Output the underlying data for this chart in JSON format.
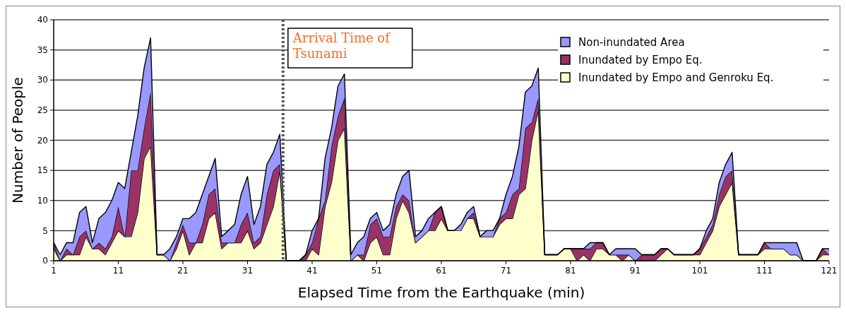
{
  "chart_data": {
    "type": "area",
    "stacked": true,
    "xlabel": "Elapsed Time from the Earthquake (min)",
    "ylabel": "Number of People",
    "x": [
      1,
      2,
      3,
      4,
      5,
      6,
      7,
      8,
      9,
      10,
      11,
      12,
      13,
      14,
      15,
      16,
      17,
      18,
      19,
      20,
      21,
      22,
      23,
      24,
      25,
      26,
      27,
      28,
      29,
      30,
      31,
      32,
      33,
      34,
      35,
      36,
      37,
      38,
      39,
      40,
      41,
      42,
      43,
      44,
      45,
      46,
      47,
      48,
      49,
      50,
      51,
      52,
      53,
      54,
      55,
      56,
      57,
      58,
      59,
      60,
      61,
      62,
      63,
      64,
      65,
      66,
      67,
      68,
      69,
      70,
      71,
      72,
      73,
      74,
      75,
      76,
      77,
      78,
      79,
      80,
      81,
      82,
      83,
      84,
      85,
      86,
      87,
      88,
      89,
      90,
      91,
      92,
      93,
      94,
      95,
      96,
      97,
      98,
      99,
      100,
      101,
      102,
      103,
      104,
      105,
      106,
      107,
      108,
      109,
      110,
      111,
      112,
      113,
      114,
      115,
      116,
      117,
      118,
      119,
      120,
      121
    ],
    "series": [
      {
        "name": "Inundated by Empo and Genroku Eq.",
        "color": "#ffffcc",
        "values": [
          2,
          0,
          1,
          1,
          1,
          4,
          2,
          2,
          1,
          3,
          5,
          4,
          4,
          8,
          17,
          19,
          1,
          1,
          0,
          2,
          5,
          1,
          3,
          3,
          7,
          8,
          2,
          3,
          3,
          3,
          5,
          2,
          3,
          6,
          9,
          15,
          0,
          0,
          0,
          0,
          2,
          1,
          9,
          13,
          20,
          22,
          0,
          1,
          0,
          3,
          4,
          1,
          1,
          7,
          10,
          8,
          3,
          4,
          5,
          5,
          7,
          5,
          5,
          5,
          7,
          7,
          4,
          4,
          4,
          6,
          7,
          7,
          11,
          12,
          20,
          25,
          1,
          1,
          1,
          2,
          2,
          0,
          1,
          0,
          2,
          2,
          1,
          1,
          0,
          1,
          0,
          0,
          0,
          0,
          1,
          2,
          1,
          1,
          1,
          1,
          1,
          3,
          5,
          9,
          11,
          13,
          1,
          1,
          1,
          1,
          2,
          2,
          2,
          2,
          1,
          1,
          0,
          0,
          0,
          1,
          1
        ]
      },
      {
        "name": "Inundated by Empo Eq.",
        "color": "#993366",
        "values": [
          1,
          0,
          1,
          0,
          3,
          1,
          0,
          1,
          1,
          1,
          4,
          0,
          11,
          7,
          5,
          9,
          0,
          0,
          0,
          1,
          1,
          2,
          0,
          3,
          4,
          4,
          1,
          0,
          0,
          3,
          3,
          1,
          1,
          5,
          6,
          1,
          0,
          0,
          0,
          1,
          1,
          6,
          1,
          6,
          4,
          5,
          0,
          0,
          1,
          3,
          3,
          3,
          3,
          2,
          1,
          2,
          0,
          0,
          0,
          3,
          2,
          0,
          0,
          0,
          0,
          1,
          0,
          0,
          0,
          1,
          1,
          4,
          1,
          10,
          3,
          2,
          0,
          0,
          0,
          0,
          0,
          2,
          1,
          2,
          1,
          1,
          0,
          0,
          1,
          0,
          0,
          1,
          1,
          1,
          1,
          0,
          0,
          0,
          0,
          0,
          1,
          1,
          1,
          2,
          3,
          2,
          0,
          0,
          0,
          0,
          1,
          0,
          0,
          0,
          0,
          0,
          0,
          0,
          0,
          1,
          0
        ]
      },
      {
        "name": "Non-inundated Area",
        "color": "#9999ff",
        "values": [
          0,
          1,
          1,
          2,
          4,
          4,
          1,
          4,
          6,
          6,
          4,
          8,
          3,
          9,
          10,
          9,
          0,
          0,
          2,
          1,
          1,
          4,
          5,
          5,
          3,
          5,
          1,
          2,
          3,
          5,
          6,
          3,
          5,
          5,
          3,
          5,
          0,
          0,
          0,
          0,
          2,
          0,
          7,
          3,
          5,
          4,
          1,
          2,
          3,
          1,
          1,
          1,
          2,
          2,
          3,
          5,
          1,
          1,
          2,
          0,
          0,
          0,
          0,
          1,
          1,
          1,
          0,
          1,
          1,
          0,
          3,
          3,
          7,
          6,
          6,
          5,
          0,
          0,
          0,
          0,
          0,
          0,
          0,
          1,
          0,
          0,
          0,
          1,
          1,
          1,
          2,
          0,
          0,
          0,
          0,
          0,
          0,
          0,
          0,
          0,
          0,
          1,
          1,
          2,
          2,
          3,
          0,
          0,
          0,
          0,
          0,
          1,
          1,
          1,
          2,
          2,
          0,
          0,
          0,
          0,
          1
        ]
      }
    ],
    "xlim": [
      1,
      121
    ],
    "xticks": [
      1,
      11,
      21,
      31,
      41,
      51,
      61,
      71,
      81,
      91,
      101,
      111,
      121
    ],
    "ylim": [
      0,
      40
    ],
    "yticks": [
      0,
      5,
      10,
      15,
      20,
      25,
      30,
      35,
      40
    ],
    "grid": "y",
    "legend": "top right",
    "ref_lines": [
      {
        "axis": "x",
        "value": 36.5,
        "label": "Arrival Time of Tsunami",
        "color": "#555555",
        "line_style": "dotted"
      }
    ]
  }
}
